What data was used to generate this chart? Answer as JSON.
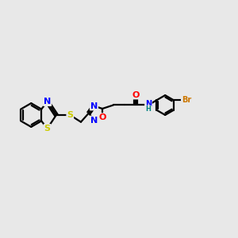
{
  "background_color": "#e8e8e8",
  "line_color": "#000000",
  "bond_width": 1.6,
  "atom_colors": {
    "S": "#cccc00",
    "N": "#0000ff",
    "O": "#ff0000",
    "Br": "#cc7700",
    "H": "#008080",
    "C": "#000000"
  },
  "font_size_atom": 8,
  "font_size_small": 7,
  "scale": 1.0
}
